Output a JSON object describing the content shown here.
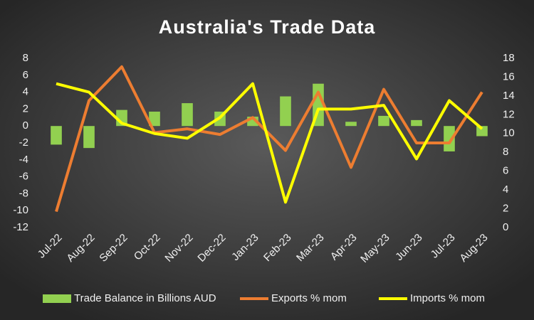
{
  "chart_data": {
    "type": "combo",
    "title": "Australia's Trade Data",
    "categories": [
      "Jul-22",
      "Aug-22",
      "Sep-22",
      "Oct-22",
      "Nov-22",
      "Dec-22",
      "Jan-23",
      "Feb-23",
      "Mar-23",
      "Apr-23",
      "May-23",
      "Jun-23",
      "Jul-23",
      "Aug-23"
    ],
    "series": [
      {
        "name": "Trade Balance in Billions AUD",
        "type": "bar",
        "axis": "y",
        "color": "#92d050",
        "values": [
          -2.2,
          -2.6,
          1.9,
          1.7,
          2.7,
          1.7,
          1.1,
          3.5,
          5.0,
          0.5,
          1.2,
          0.7,
          -3.0,
          -1.2
        ]
      },
      {
        "name": "Exports % mom",
        "type": "line",
        "axis": "y2",
        "color": "#ed7d31",
        "values": [
          1.7,
          13.5,
          17.1,
          10.1,
          10.5,
          9.9,
          11.7,
          8.2,
          14.4,
          6.4,
          14.7,
          9.0,
          9.0,
          14.4
        ]
      },
      {
        "name": "Imports % mom",
        "type": "line",
        "axis": "y2",
        "color": "#ffff00",
        "values": [
          15.3,
          14.4,
          11.1,
          10.0,
          9.5,
          11.7,
          15.3,
          2.7,
          12.6,
          12.6,
          13.0,
          7.3,
          13.5,
          10.5
        ]
      }
    ],
    "ylim": [
      -12,
      8
    ],
    "yticks": [
      -12,
      -10,
      -8,
      -6,
      -4,
      -2,
      0,
      2,
      4,
      6,
      8
    ],
    "y2lim": [
      0,
      18
    ],
    "y2ticks": [
      0,
      2,
      4,
      6,
      8,
      10,
      12,
      14,
      16,
      18
    ],
    "grid": false,
    "legend": "bottom"
  }
}
